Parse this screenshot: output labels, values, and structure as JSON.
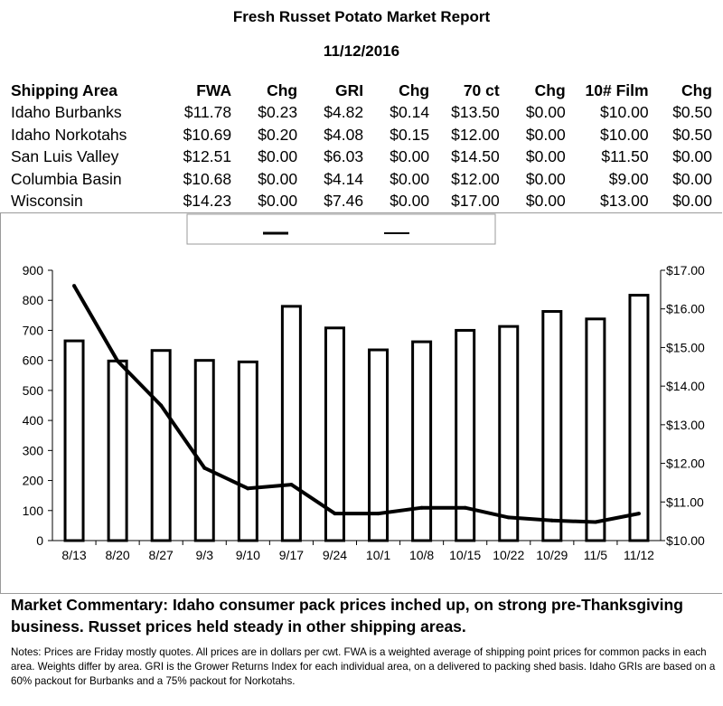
{
  "report": {
    "title": "Fresh Russet Potato Market Report",
    "date": "11/12/2016"
  },
  "table": {
    "headers": [
      "Shipping Area",
      "FWA",
      "Chg",
      "GRI",
      "Chg",
      "70 ct",
      "Chg",
      "10# Film",
      "Chg"
    ],
    "rows": [
      [
        "Idaho Burbanks",
        "$11.78",
        "$0.23",
        "$4.82",
        "$0.14",
        "$13.50",
        "$0.00",
        "$10.00",
        "$0.50"
      ],
      [
        "Idaho Norkotahs",
        "$10.69",
        "$0.20",
        "$4.08",
        "$0.15",
        "$12.00",
        "$0.00",
        "$10.00",
        "$0.50"
      ],
      [
        "San Luis Valley",
        "$12.51",
        "$0.00",
        "$6.03",
        "$0.00",
        "$14.50",
        "$0.00",
        "$11.50",
        "$0.00"
      ],
      [
        "Columbia Basin",
        "$10.68",
        "$0.00",
        "$4.14",
        "$0.00",
        "$12.00",
        "$0.00",
        "$9.00",
        "$0.00"
      ],
      [
        "Wisconsin",
        "$14.23",
        "$0.00",
        "$7.46",
        "$0.00",
        "$17.00",
        "$0.00",
        "$13.00",
        "$0.00"
      ]
    ]
  },
  "chart_data": {
    "type": "bar",
    "categories": [
      "8/13",
      "8/20",
      "8/27",
      "9/3",
      "9/10",
      "9/17",
      "9/24",
      "10/1",
      "10/8",
      "10/15",
      "10/22",
      "10/29",
      "11/5",
      "11/12"
    ],
    "series": [
      {
        "type": "bar",
        "axis": "left",
        "values": [
          665,
          598,
          633,
          600,
          595,
          780,
          708,
          635,
          662,
          700,
          713,
          763,
          738,
          817
        ]
      },
      {
        "type": "line",
        "axis": "right",
        "values": [
          16.6,
          14.65,
          13.5,
          11.88,
          11.35,
          11.45,
          10.7,
          10.7,
          10.85,
          10.85,
          10.6,
          10.52,
          10.48,
          10.7
        ]
      }
    ],
    "left_axis": {
      "ylim": [
        0,
        900
      ],
      "ticks": [
        "0",
        "100",
        "200",
        "300",
        "400",
        "500",
        "600",
        "700",
        "800",
        "900"
      ]
    },
    "right_axis": {
      "ylim": [
        10,
        17
      ],
      "ticks": [
        "$10.00",
        "$11.00",
        "$12.00",
        "$13.00",
        "$14.00",
        "$15.00",
        "$16.00",
        "$17.00"
      ]
    },
    "legend": {
      "position": "top-center",
      "entries": [
        "",
        ""
      ]
    },
    "grid": false
  },
  "commentary": "Market Commentary: Idaho consumer pack prices inched up, on strong pre-Thanksgiving business. Russet prices held steady in other shipping areas.",
  "notes": "Notes: Prices are Friday mostly quotes. All prices are in dollars per cwt. FWA is a weighted average of shipping point prices for  common packs in each area. Weights differ by area. GRI is the Grower Returns Index for each individual area, on a delivered to packing shed basis. Idaho GRIs are based on a 60% packout for Burbanks and a 75% packout for Norkotahs."
}
